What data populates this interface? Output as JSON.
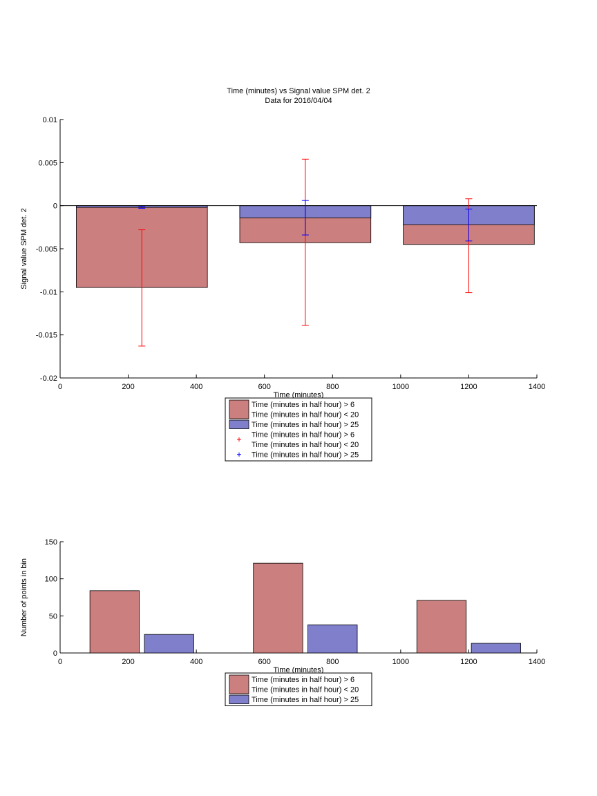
{
  "chart_data": [
    {
      "type": "bar",
      "title": "Time (minutes) vs Signal value SPM det. 2",
      "subtitle": "Data for 2016/04/04",
      "xlabel": "Time (minutes)",
      "ylabel": "Signal value SPM det. 2",
      "xlim": [
        0,
        1400
      ],
      "ylim": [
        -0.02,
        0.01
      ],
      "xticks": [
        "0",
        "200",
        "400",
        "600",
        "800",
        "1000",
        "1200",
        "1400"
      ],
      "yticks": [
        "-0.02",
        "-0.015",
        "-0.01",
        "-0.005",
        "0",
        "0.005",
        "0.01"
      ],
      "grid": false,
      "legend_position": "bottom (outside)",
      "bar_width": 385,
      "x": [
        240,
        720,
        1200
      ],
      "series": [
        {
          "name": "Time (minutes in half hour) > 6\nTime (minutes in half hour) < 20",
          "color": "#cc7f7f",
          "values": [
            -0.0095,
            -0.0043,
            -0.0045
          ]
        },
        {
          "name": "Time (minutes in half hour) > 25",
          "color": "#7f7fcc",
          "values": [
            -0.0002,
            -0.0014,
            -0.0022
          ]
        }
      ],
      "error_bars": [
        {
          "name": "Time (minutes in half hour) > 6\nTime (minutes in half hour) < 20",
          "color": "#ff0000",
          "x": [
            240,
            720,
            1200
          ],
          "lower": [
            -0.0163,
            -0.0139,
            -0.0101
          ],
          "upper": [
            -0.0028,
            0.0054,
            0.0008
          ]
        },
        {
          "name": "Time (minutes in half hour) > 25",
          "color": "#0000ff",
          "x": [
            240,
            720,
            1200
          ],
          "lower": [
            -0.0003,
            -0.0034,
            -0.0041
          ],
          "upper": [
            -0.0001,
            0.0006,
            -0.0004
          ]
        }
      ]
    },
    {
      "type": "bar",
      "xlabel": "Time (minutes)",
      "ylabel": "Number of points in bin",
      "xlim": [
        0,
        1400
      ],
      "ylim": [
        0,
        150
      ],
      "xticks": [
        "0",
        "200",
        "400",
        "600",
        "800",
        "1000",
        "1200",
        "1400"
      ],
      "yticks": [
        "0",
        "50",
        "100",
        "150"
      ],
      "grid": false,
      "legend_position": "bottom (outside)",
      "bar_width": 145,
      "series": [
        {
          "name": "Time (minutes in half hour) > 6\nTime (minutes in half hour) < 20",
          "color": "#cc7f7f",
          "x": [
            160,
            640,
            1120
          ],
          "values": [
            84,
            121,
            71
          ]
        },
        {
          "name": "Time (minutes in half hour) > 25",
          "color": "#7f7fcc",
          "x": [
            320,
            800,
            1280
          ],
          "values": [
            25,
            38,
            13
          ]
        }
      ]
    }
  ]
}
